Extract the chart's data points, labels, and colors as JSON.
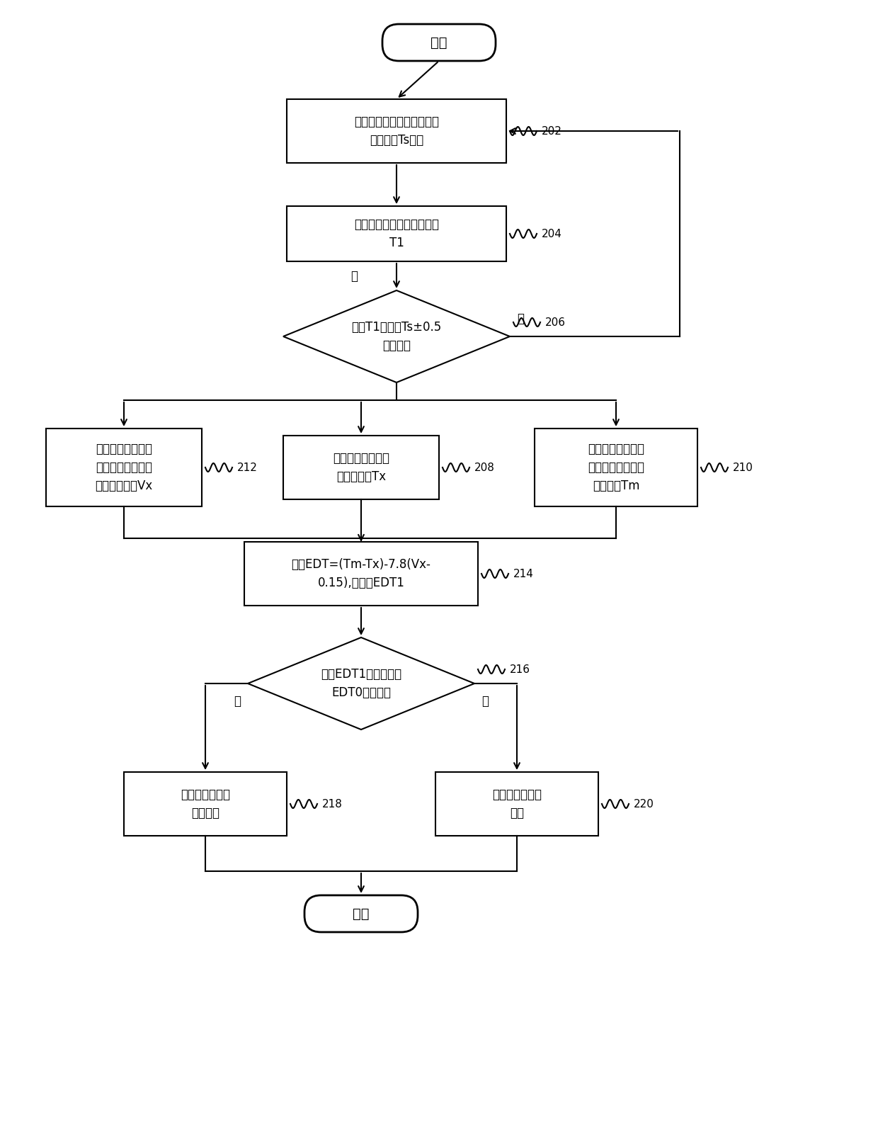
{
  "bg_color": "#ffffff",
  "line_color": "#000000",
  "text_color": "#000000",
  "font_size": 12,
  "label_font_size": 11,
  "start_text": "开始",
  "end_text": "结束",
  "box202_text": "空调器开机后，空调器按照\n设定温度Ts运行",
  "box202_label": "202",
  "box204_text": "室温温度传感器检测到室温\nT1",
  "box204_label": "204",
  "diamond206_text": "判断T1是否在Ts±0.5\n范围内？",
  "diamond206_label": "206",
  "box208_text": "红外温度传感器检\n测当前温度Tx",
  "box208_label": "208",
  "box210_text": "通过扫描局域环境\n空气温度，计算出\n平均温度Tm",
  "box210_label": "210",
  "box212_text": "检测室内风机转速\n和送风方式，计算\n当前平均风速Vx",
  "box212_label": "212",
  "box214_text": "根据EDT=(Tm-Tx)-7.8(Vx-\n0.15),计算出EDT1",
  "box214_label": "214",
  "diamond216_text": "判断EDT1是否在预设\nEDT0范围内？",
  "diamond216_label": "216",
  "box218_text": "维持空调器运行\n方式不变",
  "box218_label": "218",
  "box220_text": "改变空调器运行\n方式",
  "box220_label": "220",
  "yes_text": "是",
  "no_text": "否"
}
